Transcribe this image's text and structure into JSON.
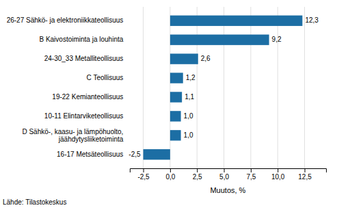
{
  "chart_data": {
    "type": "bar",
    "orientation": "horizontal",
    "categories": [
      "16-17 Metsäteollisuus",
      "D Sähkö-, kaasu- ja lämpöhuolto,\njäähdytysliiketoiminta",
      "10-11 Elintarviketeollisuus",
      "19-22 Kemianteollisuus",
      "C Teollisuus",
      "24-30_33 Metalliteollisuus",
      "B Kaivostoiminta ja louhinta",
      "26-27 Sähkö- ja elektroniikkateollisuus"
    ],
    "values": [
      -2.5,
      1.0,
      1.0,
      1.1,
      1.2,
      2.6,
      9.2,
      12.3
    ],
    "value_labels": [
      "-2,5",
      "1,0",
      "1,0",
      "1,1",
      "1,2",
      "2,6",
      "9,2",
      "12,3"
    ],
    "data_labels": true,
    "color": "#1c6ea4",
    "xlabel": "Muutos, %",
    "xlim": [
      -3.75,
      14.5
    ],
    "xticks": [
      {
        "value": -2.5,
        "label": "-2,5"
      },
      {
        "value": 0.0,
        "label": "0,0"
      },
      {
        "value": 2.5,
        "label": "2,5"
      },
      {
        "value": 5.0,
        "label": "5,0"
      },
      {
        "value": 7.5,
        "label": "7,5"
      },
      {
        "value": 10.0,
        "label": "10,0"
      },
      {
        "value": 12.5,
        "label": "12,5"
      }
    ],
    "grid": true,
    "annotations": [
      "Lähde: Tilastokeskus"
    ]
  }
}
